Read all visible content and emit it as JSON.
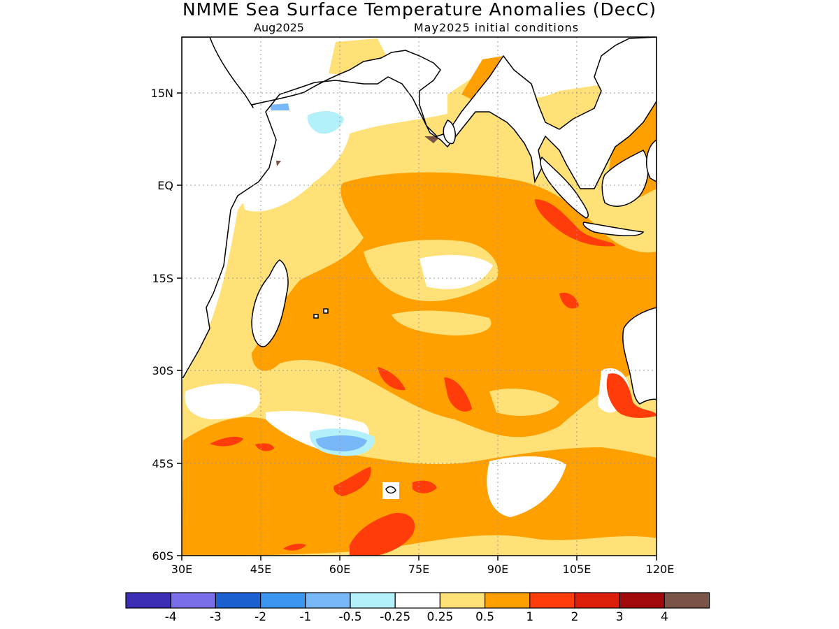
{
  "header": {
    "title": "NMME Sea Surface Temperature Anomalies (DecC)",
    "target_month": "Aug2025",
    "initial_conditions": "May2025 initial conditions"
  },
  "axes": {
    "lat_labels": [
      "15N",
      "EQ",
      "15S",
      "30S",
      "45S",
      "60S"
    ],
    "lon_labels": [
      "30E",
      "45E",
      "60E",
      "75E",
      "90E",
      "105E",
      "120E"
    ]
  },
  "colorbar": {
    "colors": [
      "#3b2db4",
      "#7a6ee8",
      "#1a60d0",
      "#3c96f0",
      "#78b8f8",
      "#b4f0fa",
      "#ffffff",
      "#ffe178",
      "#ffa000",
      "#ff3c0a",
      "#dc1e0a",
      "#a00a0a",
      "#7a5446"
    ],
    "labels": [
      "-4",
      "-3",
      "-2",
      "-1",
      "-0.5",
      "-0.25",
      "0.25",
      "0.5",
      "1",
      "2",
      "3",
      "4"
    ]
  },
  "map_data": {
    "region": "Indian Ocean",
    "lon_range": [
      30,
      120
    ],
    "lat_range": [
      -60,
      24
    ],
    "field": "SST anomaly",
    "features": [
      {
        "name": "moderate warm band",
        "level": "0.5 to 1",
        "lon_range": [
          55,
          120
        ],
        "lat_range": [
          -45,
          0
        ]
      },
      {
        "name": "cool pocket",
        "level": "-1 to -0.5",
        "lon": 60,
        "lat": -42
      },
      {
        "name": "strong warm off Sumatra",
        "level": "1 to 2",
        "lon": 101,
        "lat": -4
      },
      {
        "name": "strong warm off Western Australia",
        "level": "1 to 2",
        "lon": 114,
        "lat": -34
      },
      {
        "name": "strong warm south",
        "level": "1 to 2",
        "lon": 69,
        "lat": -55
      }
    ]
  }
}
